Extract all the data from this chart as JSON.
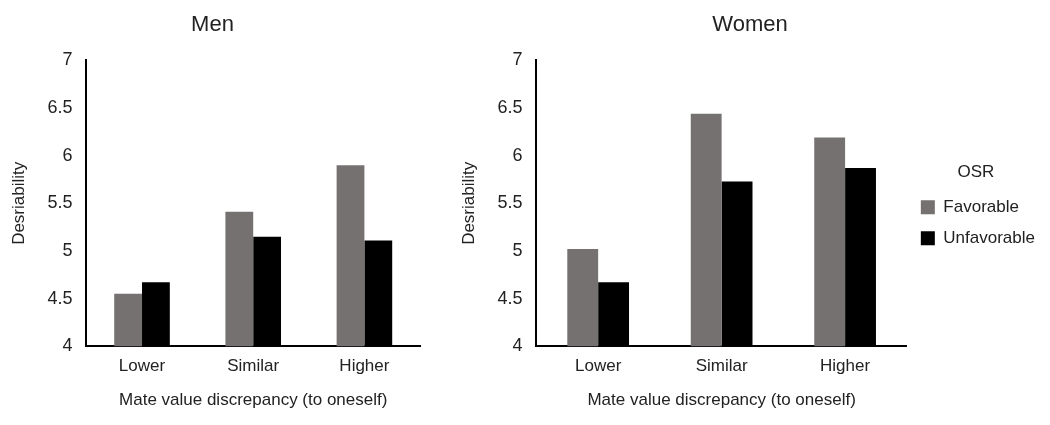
{
  "chart_data": [
    {
      "type": "bar",
      "title": "Men",
      "xlabel": "Mate value discrepancy (to oneself)",
      "ylabel": "Desriability",
      "categories": [
        "Lower",
        "Similar",
        "Higher"
      ],
      "series": [
        {
          "color": "#767171",
          "values": [
            4.55,
            5.41,
            5.9
          ]
        },
        {
          "color": "#000000",
          "values": [
            4.67,
            5.15,
            5.11
          ]
        }
      ],
      "ylim": [
        4,
        7
      ],
      "yticks": [
        4,
        4.5,
        5,
        5.5,
        6,
        6.5,
        7
      ],
      "grid": false,
      "legend": false
    },
    {
      "type": "bar",
      "title": "Women",
      "xlabel": "Mate value discrepancy (to oneself)",
      "ylabel": "Desriability",
      "legend_title": "OSR",
      "categories": [
        "Lower",
        "Similar",
        "Higher"
      ],
      "series": [
        {
          "name": "Favorable",
          "color": "#767171",
          "values": [
            5.02,
            6.44,
            6.19
          ]
        },
        {
          "name": "Unfavorable",
          "color": "#000000",
          "values": [
            4.67,
            5.73,
            5.87
          ]
        }
      ],
      "ylim": [
        4,
        7
      ],
      "yticks": [
        4,
        4.5,
        5,
        5.5,
        6,
        6.5,
        7
      ],
      "grid": false,
      "legend": "right"
    }
  ]
}
